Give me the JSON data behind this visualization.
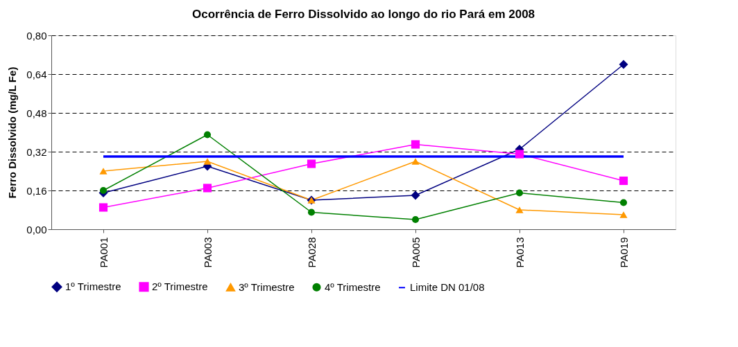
{
  "chart_data": {
    "type": "line",
    "title": "Ocorrência de Ferro Dissolvido ao longo do rio Pará em 2008",
    "ylabel": "Ferro Dissolvido (mg/L Fe)",
    "categories": [
      "PA001",
      "PA003",
      "PA028",
      "PA005",
      "PA013",
      "PA019"
    ],
    "ylim": [
      0,
      0.8
    ],
    "yticks": [
      {
        "value": 0,
        "label": "0,00"
      },
      {
        "value": 0.16,
        "label": "0,16"
      },
      {
        "value": 0.32,
        "label": "0,32"
      },
      {
        "value": 0.48,
        "label": "0,48"
      },
      {
        "value": 0.64,
        "label": "0,64"
      },
      {
        "value": 0.8,
        "label": "0,80"
      }
    ],
    "grid": "y",
    "legend": "bottom",
    "line_style": "solid",
    "series": [
      {
        "name": "1º Trimestre",
        "color": "#000080",
        "marker": "diamond",
        "values": [
          0.15,
          0.26,
          0.12,
          0.14,
          0.33,
          0.68
        ]
      },
      {
        "name": "2º Trimestre",
        "color": "#ff00ff",
        "marker": "square",
        "values": [
          0.09,
          0.17,
          0.27,
          0.35,
          0.31,
          0.2
        ]
      },
      {
        "name": "3º Trimestre",
        "color": "#ff9900",
        "marker": "triangle",
        "values": [
          0.24,
          0.28,
          0.12,
          0.28,
          0.08,
          0.06
        ]
      },
      {
        "name": "4º Trimestre",
        "color": "#008000",
        "marker": "circle",
        "values": [
          0.16,
          0.39,
          0.07,
          0.04,
          0.15,
          0.11
        ]
      },
      {
        "name": "Limite DN 01/08",
        "color": "#0000ff",
        "marker": "none",
        "type": "line",
        "values": [
          0.3,
          0.3,
          0.3,
          0.3,
          0.3,
          0.3
        ]
      }
    ]
  }
}
